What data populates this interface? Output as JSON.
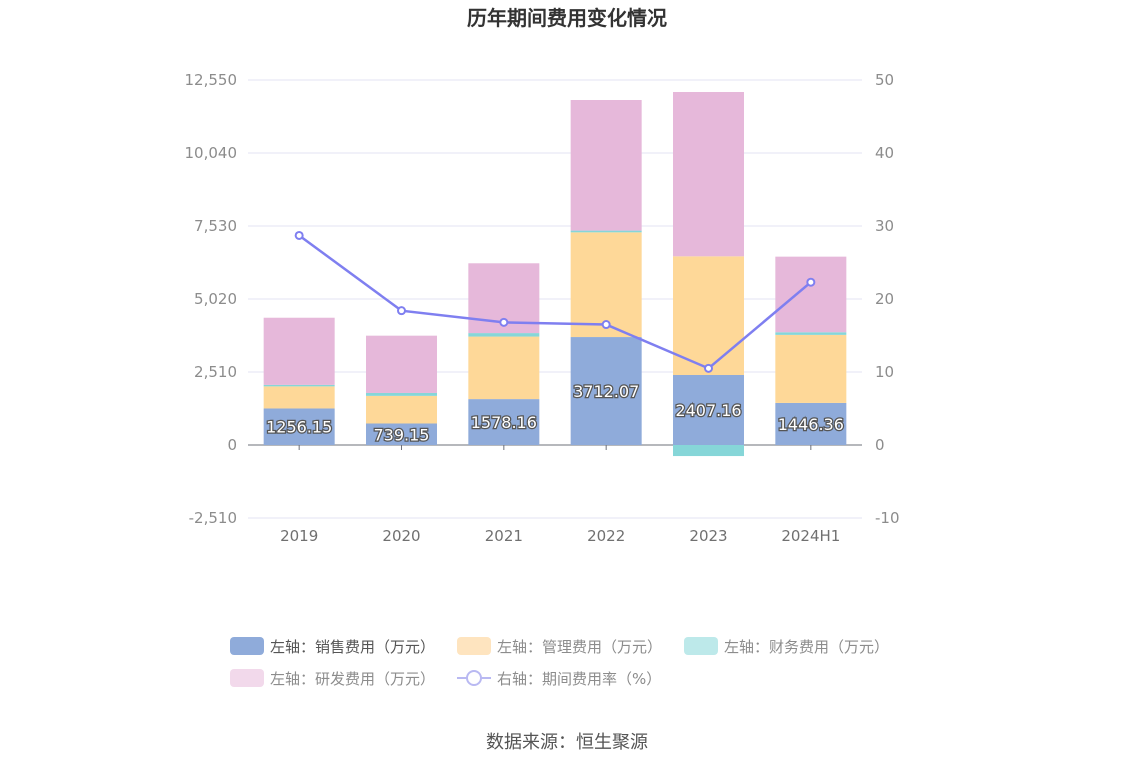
{
  "chart_data": {
    "type": "bar",
    "title": "历年期间费用变化情况",
    "categories": [
      "2019",
      "2020",
      "2021",
      "2022",
      "2023",
      "2024H1"
    ],
    "left_axis": {
      "ylim": [
        -2510,
        12550
      ],
      "ticks": [
        "12,550",
        "10,040",
        "7,530",
        "5,020",
        "2,510",
        "0",
        "-2,510"
      ],
      "tick_values": [
        12550,
        10040,
        7530,
        5020,
        2510,
        0,
        -2510
      ]
    },
    "right_axis": {
      "ylim": [
        -10,
        50
      ],
      "ticks": [
        "50",
        "40",
        "30",
        "20",
        "10",
        "0",
        "-10"
      ],
      "tick_values": [
        50,
        40,
        30,
        20,
        10,
        0,
        -10
      ]
    },
    "series": [
      {
        "name": "左轴：销售费用（万元）",
        "type": "bar",
        "axis": "left",
        "color": "#8fabda",
        "values": [
          1256.15,
          739.15,
          1578.16,
          3712.07,
          2407.16,
          1446.36
        ],
        "labels": [
          "1256.15",
          "739.15",
          "1578.16",
          "3712.07",
          "2407.16",
          "1446.36"
        ]
      },
      {
        "name": "左轴：管理费用（万元）",
        "type": "bar",
        "axis": "left",
        "color": "#fed898",
        "values": [
          760,
          950,
          2150,
          3600,
          4080,
          2340
        ]
      },
      {
        "name": "左轴：财务费用（万元）",
        "type": "bar",
        "axis": "left",
        "color": "#86d6d8",
        "values": [
          50,
          100,
          120,
          60,
          -380,
          90
        ]
      },
      {
        "name": "左轴：研发费用（万元）",
        "type": "bar",
        "axis": "left",
        "color": "#e6b8da",
        "values": [
          2310,
          1970,
          2400,
          4490,
          5650,
          2600
        ]
      },
      {
        "name": "右轴：期间费用率（%）",
        "type": "line",
        "axis": "right",
        "color": "#7f7ff0",
        "values": [
          28.7,
          18.4,
          16.8,
          16.5,
          10.5,
          22.3
        ]
      }
    ],
    "legend_position": "bottom",
    "grid": true
  },
  "legend": [
    {
      "label": "左轴：销售费用（万元）",
      "color": "#8fabda",
      "kind": "bar"
    },
    {
      "label": "左轴：管理费用（万元）",
      "color": "#fee4bf",
      "kind": "bar"
    },
    {
      "label": "左轴：财务费用（万元）",
      "color": "#bde9ea",
      "kind": "bar"
    },
    {
      "label": "左轴：研发费用（万元）",
      "color": "#f2d9eb",
      "kind": "bar"
    },
    {
      "label": "右轴：期间费用率（%）",
      "color": "#b9b9f2",
      "kind": "line"
    }
  ],
  "source": "数据来源：恒生聚源"
}
